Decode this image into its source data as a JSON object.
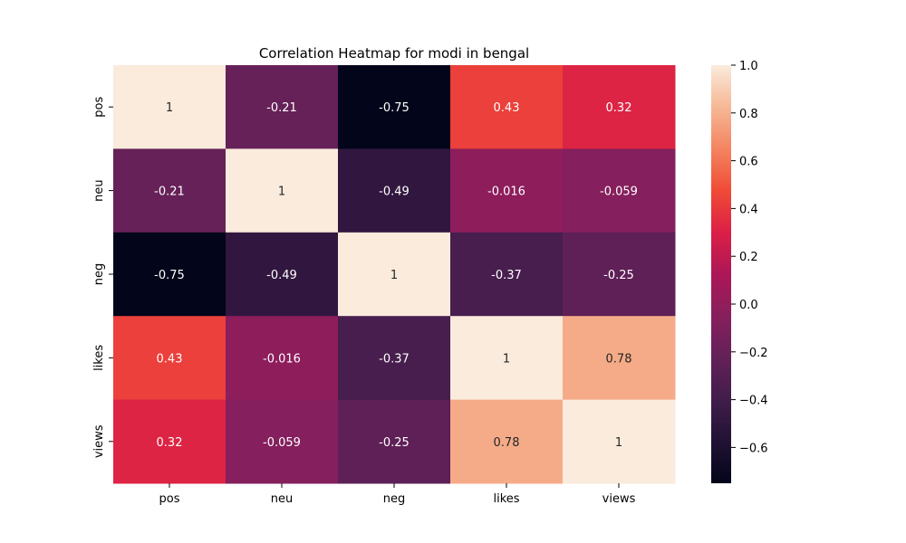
{
  "chart_data": {
    "type": "heatmap",
    "title": "Correlation Heatmap for modi in bengal",
    "xlabel": "",
    "ylabel": "",
    "x_categories": [
      "pos",
      "neu",
      "neg",
      "likes",
      "views"
    ],
    "y_categories": [
      "pos",
      "neu",
      "neg",
      "likes",
      "views"
    ],
    "values": [
      [
        1,
        -0.21,
        -0.75,
        0.43,
        0.32
      ],
      [
        -0.21,
        1,
        -0.49,
        -0.016,
        -0.059
      ],
      [
        -0.75,
        -0.49,
        1,
        -0.37,
        -0.25
      ],
      [
        0.43,
        -0.016,
        -0.37,
        1,
        0.78
      ],
      [
        0.32,
        -0.059,
        -0.25,
        0.78,
        1
      ]
    ],
    "cell_labels": [
      [
        "1",
        "-0.21",
        "-0.75",
        "0.43",
        "0.32"
      ],
      [
        "-0.21",
        "1",
        "-0.49",
        "-0.016",
        "-0.059"
      ],
      [
        "-0.75",
        "-0.49",
        "1",
        "-0.37",
        "-0.25"
      ],
      [
        "0.43",
        "-0.016",
        "-0.37",
        "1",
        "0.78"
      ],
      [
        "0.32",
        "-0.059",
        "-0.25",
        "0.78",
        "1"
      ]
    ],
    "colorbar": {
      "range": [
        -0.75,
        1.0
      ],
      "ticks": [
        1.0,
        0.8,
        0.6,
        0.4,
        0.2,
        0.0,
        -0.2,
        -0.4,
        -0.6
      ],
      "tick_labels": [
        "1.0",
        "0.8",
        "0.6",
        "0.4",
        "0.2",
        "0.0",
        "−0.2",
        "−0.4",
        "−0.6"
      ],
      "colormap": "rocket"
    },
    "grid": false
  }
}
